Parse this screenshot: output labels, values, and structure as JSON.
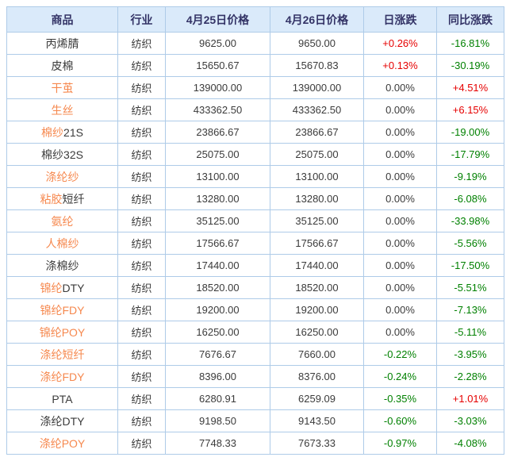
{
  "colors": {
    "header_bg": "#daeafa",
    "header_text": "#333366",
    "border": "#aecbe8",
    "body_text": "#3b3b3b",
    "link_orange": "#f6884e",
    "change_up_red": "#e60000",
    "change_down_green": "#008000"
  },
  "table": {
    "columns": [
      {
        "label": "商品"
      },
      {
        "label": "行业"
      },
      {
        "label": "4月25日价格"
      },
      {
        "label": "4月26日价格"
      },
      {
        "label": "日涨跌"
      },
      {
        "label": "同比涨跌"
      }
    ],
    "rows": [
      {
        "link": "",
        "plain": "丙烯腈",
        "industry": "纺织",
        "p1": "9625.00",
        "p2": "9650.00",
        "daily": "+0.26%",
        "daily_cls": "up",
        "yoy": "-16.81%",
        "yoy_cls": "down"
      },
      {
        "link": "",
        "plain": "皮棉",
        "industry": "纺织",
        "p1": "15650.67",
        "p2": "15670.83",
        "daily": "+0.13%",
        "daily_cls": "up",
        "yoy": "-30.19%",
        "yoy_cls": "down"
      },
      {
        "link": "干茧",
        "plain": "",
        "industry": "纺织",
        "p1": "139000.00",
        "p2": "139000.00",
        "daily": "0.00%",
        "daily_cls": "flat",
        "yoy": "+4.51%",
        "yoy_cls": "up"
      },
      {
        "link": "生丝",
        "plain": "",
        "industry": "纺织",
        "p1": "433362.50",
        "p2": "433362.50",
        "daily": "0.00%",
        "daily_cls": "flat",
        "yoy": "+6.15%",
        "yoy_cls": "up"
      },
      {
        "link": "棉纱",
        "plain": "21S",
        "industry": "纺织",
        "p1": "23866.67",
        "p2": "23866.67",
        "daily": "0.00%",
        "daily_cls": "flat",
        "yoy": "-19.00%",
        "yoy_cls": "down"
      },
      {
        "link": "",
        "plain": "棉纱32S",
        "industry": "纺织",
        "p1": "25075.00",
        "p2": "25075.00",
        "daily": "0.00%",
        "daily_cls": "flat",
        "yoy": "-17.79%",
        "yoy_cls": "down"
      },
      {
        "link": "涤纶纱",
        "plain": "",
        "industry": "纺织",
        "p1": "13100.00",
        "p2": "13100.00",
        "daily": "0.00%",
        "daily_cls": "flat",
        "yoy": "-9.19%",
        "yoy_cls": "down"
      },
      {
        "link": "粘胶",
        "plain": "短纤",
        "industry": "纺织",
        "p1": "13280.00",
        "p2": "13280.00",
        "daily": "0.00%",
        "daily_cls": "flat",
        "yoy": "-6.08%",
        "yoy_cls": "down"
      },
      {
        "link": "氨纶",
        "plain": "",
        "industry": "纺织",
        "p1": "35125.00",
        "p2": "35125.00",
        "daily": "0.00%",
        "daily_cls": "flat",
        "yoy": "-33.98%",
        "yoy_cls": "down"
      },
      {
        "link": "人棉纱",
        "plain": "",
        "industry": "纺织",
        "p1": "17566.67",
        "p2": "17566.67",
        "daily": "0.00%",
        "daily_cls": "flat",
        "yoy": "-5.56%",
        "yoy_cls": "down"
      },
      {
        "link": "",
        "plain": "涤棉纱",
        "industry": "纺织",
        "p1": "17440.00",
        "p2": "17440.00",
        "daily": "0.00%",
        "daily_cls": "flat",
        "yoy": "-17.50%",
        "yoy_cls": "down"
      },
      {
        "link": "锦纶",
        "plain": "DTY",
        "industry": "纺织",
        "p1": "18520.00",
        "p2": "18520.00",
        "daily": "0.00%",
        "daily_cls": "flat",
        "yoy": "-5.51%",
        "yoy_cls": "down"
      },
      {
        "link": "锦纶FDY",
        "plain": "",
        "industry": "纺织",
        "p1": "19200.00",
        "p2": "19200.00",
        "daily": "0.00%",
        "daily_cls": "flat",
        "yoy": "-7.13%",
        "yoy_cls": "down"
      },
      {
        "link": "锦纶POY",
        "plain": "",
        "industry": "纺织",
        "p1": "16250.00",
        "p2": "16250.00",
        "daily": "0.00%",
        "daily_cls": "flat",
        "yoy": "-5.11%",
        "yoy_cls": "down"
      },
      {
        "link": "涤纶短纤",
        "plain": "",
        "industry": "纺织",
        "p1": "7676.67",
        "p2": "7660.00",
        "daily": "-0.22%",
        "daily_cls": "down",
        "yoy": "-3.95%",
        "yoy_cls": "down"
      },
      {
        "link": "涤纶FDY",
        "plain": "",
        "industry": "纺织",
        "p1": "8396.00",
        "p2": "8376.00",
        "daily": "-0.24%",
        "daily_cls": "down",
        "yoy": "-2.28%",
        "yoy_cls": "down"
      },
      {
        "link": "",
        "plain": "PTA",
        "industry": "纺织",
        "p1": "6280.91",
        "p2": "6259.09",
        "daily": "-0.35%",
        "daily_cls": "down",
        "yoy": "+1.01%",
        "yoy_cls": "up"
      },
      {
        "link": "",
        "plain": "涤纶DTY",
        "industry": "纺织",
        "p1": "9198.50",
        "p2": "9143.50",
        "daily": "-0.60%",
        "daily_cls": "down",
        "yoy": "-3.03%",
        "yoy_cls": "down"
      },
      {
        "link": "涤纶POY",
        "plain": "",
        "industry": "纺织",
        "p1": "7748.33",
        "p2": "7673.33",
        "daily": "-0.97%",
        "daily_cls": "down",
        "yoy": "-4.08%",
        "yoy_cls": "down"
      }
    ]
  }
}
